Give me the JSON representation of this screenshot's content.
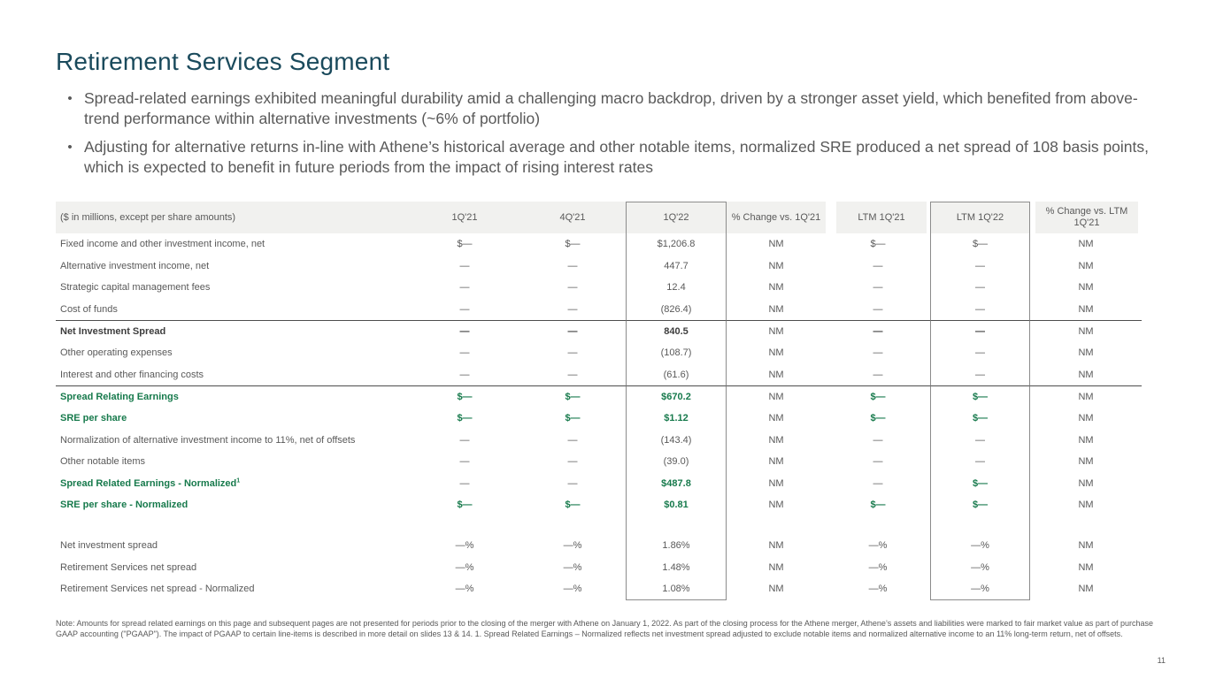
{
  "slide": {
    "title": "Retirement Services Segment",
    "page_number": "11"
  },
  "bullets": [
    {
      "marker": "•",
      "text": "Spread-related earnings exhibited meaningful durability amid a challenging macro backdrop, driven by a stronger asset yield, which benefited from above-trend performance within alternative investments (~6% of portfolio)"
    },
    {
      "marker": "•",
      "text": "Adjusting for alternative returns in-line with Athene’s historical average and other notable items, normalized SRE produced a net spread of 108 basis points, which is expected to benefit in future periods from the impact of rising interest rates"
    }
  ],
  "table": {
    "header": [
      "($ in millions, except per share amounts)",
      "1Q'21",
      "4Q'21",
      "1Q'22",
      "% Change vs. 1Q'21",
      "LTM 1Q'21",
      "LTM 1Q'22",
      "% Change vs. LTM 1Q'21"
    ],
    "boxed_columns": [
      3,
      6
    ],
    "rows": [
      {
        "label": "Fixed income and other investment income, net",
        "label_style": "normal",
        "values": [
          "$—",
          "$—",
          "$1,206.8",
          "NM",
          "$—",
          "$—",
          "NM"
        ],
        "value_styles": [
          "normal",
          "normal",
          "normal",
          "normal",
          "normal",
          "normal",
          "normal"
        ]
      },
      {
        "label": "Alternative investment income, net",
        "label_style": "normal",
        "values": [
          "—",
          "—",
          "447.7",
          "NM",
          "—",
          "—",
          "NM"
        ],
        "value_styles": [
          "normal",
          "normal",
          "normal",
          "normal",
          "normal",
          "normal",
          "normal"
        ]
      },
      {
        "label": "Strategic capital management fees",
        "label_style": "normal",
        "values": [
          "—",
          "—",
          "12.4",
          "NM",
          "—",
          "—",
          "NM"
        ],
        "value_styles": [
          "normal",
          "normal",
          "normal",
          "normal",
          "normal",
          "normal",
          "normal"
        ]
      },
      {
        "label": "Cost of funds",
        "label_style": "normal",
        "values": [
          "—",
          "—",
          "(826.4)",
          "NM",
          "—",
          "—",
          "NM"
        ],
        "value_styles": [
          "normal",
          "normal",
          "normal",
          "normal",
          "normal",
          "normal",
          "normal"
        ]
      },
      {
        "label": "Net Investment Spread",
        "label_style": "bold",
        "rule_above": true,
        "values": [
          "—",
          "—",
          "840.5",
          "NM",
          "—",
          "—",
          "NM"
        ],
        "value_styles": [
          "bold",
          "bold",
          "bold",
          "normal",
          "bold",
          "bold",
          "normal"
        ]
      },
      {
        "label": "Other operating expenses",
        "label_style": "normal",
        "values": [
          "—",
          "—",
          "(108.7)",
          "NM",
          "—",
          "—",
          "NM"
        ],
        "value_styles": [
          "normal",
          "normal",
          "normal",
          "normal",
          "normal",
          "normal",
          "normal"
        ]
      },
      {
        "label": "Interest and other financing costs",
        "label_style": "normal",
        "values": [
          "—",
          "—",
          "(61.6)",
          "NM",
          "—",
          "—",
          "NM"
        ],
        "value_styles": [
          "normal",
          "normal",
          "normal",
          "normal",
          "normal",
          "normal",
          "normal"
        ]
      },
      {
        "label": "Spread Relating Earnings",
        "label_style": "green",
        "rule_above": true,
        "values": [
          "$—",
          "$—",
          "$670.2",
          "NM",
          "$—",
          "$—",
          "NM"
        ],
        "value_styles": [
          "green",
          "green",
          "green",
          "normal",
          "green",
          "green",
          "normal"
        ]
      },
      {
        "label": "SRE per share",
        "label_style": "green",
        "values": [
          "$—",
          "$—",
          "$1.12",
          "NM",
          "$—",
          "$—",
          "NM"
        ],
        "value_styles": [
          "green",
          "green",
          "green",
          "normal",
          "green",
          "green",
          "normal"
        ]
      },
      {
        "label": "Normalization of alternative investment income to 11%, net of offsets",
        "label_style": "normal",
        "values": [
          "—",
          "—",
          "(143.4)",
          "NM",
          "—",
          "—",
          "NM"
        ],
        "value_styles": [
          "normal",
          "normal",
          "normal",
          "normal",
          "normal",
          "normal",
          "normal"
        ]
      },
      {
        "label": "Other notable items",
        "label_style": "normal",
        "values": [
          "—",
          "—",
          "(39.0)",
          "NM",
          "—",
          "—",
          "NM"
        ],
        "value_styles": [
          "normal",
          "normal",
          "normal",
          "normal",
          "normal",
          "normal",
          "normal"
        ]
      },
      {
        "label": "Spread Related Earnings - Normalized",
        "label_sup": "1",
        "label_style": "green",
        "values": [
          "—",
          "—",
          "$487.8",
          "NM",
          "—",
          "$—",
          "NM"
        ],
        "value_styles": [
          "normal",
          "normal",
          "green",
          "normal",
          "normal",
          "green",
          "normal"
        ]
      },
      {
        "label": "SRE per share - Normalized",
        "label_style": "green",
        "values": [
          "$—",
          "$—",
          "$0.81",
          "NM",
          "$—",
          "$—",
          "NM"
        ],
        "value_styles": [
          "green",
          "green",
          "green",
          "normal",
          "green",
          "green",
          "normal"
        ]
      },
      {
        "spacer": true
      },
      {
        "label": "Net investment spread",
        "label_style": "normal",
        "values": [
          "—%",
          "—%",
          "1.86%",
          "NM",
          "—%",
          "—%",
          "NM"
        ],
        "value_styles": [
          "normal",
          "normal",
          "normal",
          "normal",
          "normal",
          "normal",
          "normal"
        ]
      },
      {
        "label": "Retirement Services net spread",
        "label_style": "normal",
        "values": [
          "—%",
          "—%",
          "1.48%",
          "NM",
          "—%",
          "—%",
          "NM"
        ],
        "value_styles": [
          "normal",
          "normal",
          "normal",
          "normal",
          "normal",
          "normal",
          "normal"
        ]
      },
      {
        "label": "Retirement Services net spread - Normalized",
        "label_style": "normal",
        "values": [
          "—%",
          "—%",
          "1.08%",
          "NM",
          "—%",
          "—%",
          "NM"
        ],
        "value_styles": [
          "normal",
          "normal",
          "normal",
          "normal",
          "normal",
          "normal",
          "normal"
        ]
      }
    ],
    "footnote": "Note: Amounts for spread related earnings on this page and subsequent pages are not presented for periods prior to the closing of the merger with Athene on January 1, 2022. As part of the closing process for the Athene merger, Athene’s assets and liabilities were marked to fair market value as part of purchase GAAP accounting (\"PGAAP\"). The impact of PGAAP to certain line-items is described in more detail on slides 13 & 14. 1. Spread Related Earnings – Normalized reflects net investment spread adjusted to exclude notable items and normalized alternative income to an 11% long-term return, net of offsets."
  },
  "colors": {
    "title_teal": "#1a4a5c",
    "accent_green": "#177a4c",
    "header_bg": "#f1f1ef",
    "box_border": "#8c8c8c"
  }
}
